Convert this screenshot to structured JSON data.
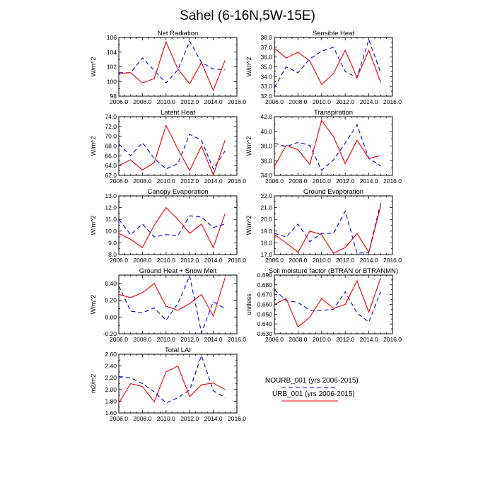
{
  "title": "Sahel (6-16N,5W-15E)",
  "legend": [
    {
      "name": "NOURB_001 (yrs 2006-2015)",
      "color": "#0000ee",
      "dash": true
    },
    {
      "name": "URB_001 (yrs 2006-2015)",
      "color": "#ee0000",
      "dash": false
    }
  ],
  "chart_data": [
    {
      "type": "line",
      "title": "Net Radiation",
      "ylabel": "W/m^2",
      "xlim": [
        2006,
        2016
      ],
      "ylim": [
        98,
        106
      ],
      "xticks": [
        2006,
        2008,
        2010,
        2012,
        2014,
        2016
      ],
      "xtick_labels": [
        "2006.0",
        "2008.0",
        "2010.0",
        "2012.0",
        "2014.0",
        "2016.0"
      ],
      "yticks": [
        98,
        100,
        102,
        104,
        106
      ],
      "ytick_labels": [
        "98",
        "100",
        "102",
        "104",
        "106"
      ],
      "x": [
        2006,
        2007,
        2008,
        2009,
        2010,
        2011,
        2012,
        2013,
        2014,
        2015
      ],
      "series": [
        {
          "name": "NOURB_001 (yrs 2006-2015)",
          "values": [
            101.2,
            101.2,
            103.2,
            101.5,
            99.8,
            101.6,
            105.5,
            102.6,
            101.7,
            101.6
          ]
        },
        {
          "name": "URB_001 (yrs 2006-2015)",
          "values": [
            101.1,
            101.2,
            99.8,
            100.4,
            105.4,
            101.7,
            99.7,
            102.6,
            98.8,
            102.9
          ]
        }
      ]
    },
    {
      "type": "line",
      "title": "Sensible Heat",
      "ylabel": "W/m^2",
      "xlim": [
        2006,
        2016
      ],
      "ylim": [
        32,
        38
      ],
      "xticks": [
        2006,
        2008,
        2010,
        2012,
        2014,
        2016
      ],
      "xtick_labels": [
        "2006.0",
        "2008.0",
        "2010.0",
        "2012.0",
        "2014.0",
        "2016.0"
      ],
      "yticks": [
        32,
        33,
        34,
        35,
        36,
        37,
        38
      ],
      "ytick_labels": [
        "32.0",
        "33.0",
        "34.0",
        "35.0",
        "36.0",
        "37.0",
        "38.0"
      ],
      "x": [
        2006,
        2007,
        2008,
        2009,
        2010,
        2011,
        2012,
        2013,
        2014,
        2015
      ],
      "series": [
        {
          "name": "NOURB_001 (yrs 2006-2015)",
          "values": [
            32.9,
            35.0,
            34.4,
            35.8,
            36.6,
            37.0,
            34.5,
            33.9,
            37.8,
            34.4
          ]
        },
        {
          "name": "URB_001 (yrs 2006-2015)",
          "values": [
            36.9,
            35.9,
            36.5,
            35.6,
            33.2,
            34.3,
            36.7,
            33.9,
            36.7,
            33.4
          ]
        }
      ]
    },
    {
      "type": "line",
      "title": "Latent Heat",
      "ylabel": "W/m^2",
      "xlim": [
        2006,
        2016
      ],
      "ylim": [
        62,
        74
      ],
      "xticks": [
        2006,
        2008,
        2010,
        2012,
        2014,
        2016
      ],
      "xtick_labels": [
        "2006.0",
        "2008.0",
        "2010.0",
        "2012.0",
        "2014.0",
        "2016.0"
      ],
      "yticks": [
        62,
        64,
        66,
        68,
        70,
        72,
        74
      ],
      "ytick_labels": [
        "62.0",
        "64.0",
        "66.0",
        "68.0",
        "70.0",
        "72.0",
        "74.0"
      ],
      "x": [
        2006,
        2007,
        2008,
        2009,
        2010,
        2011,
        2012,
        2013,
        2014,
        2015
      ],
      "series": [
        {
          "name": "NOURB_001 (yrs 2006-2015)",
          "values": [
            68.4,
            66.0,
            68.7,
            65.5,
            63.3,
            64.4,
            70.4,
            69.2,
            63.3,
            67.0
          ]
        },
        {
          "name": "URB_001 (yrs 2006-2015)",
          "values": [
            64.0,
            65.2,
            63.1,
            64.6,
            72.2,
            67.4,
            63.0,
            68.0,
            62.1,
            69.2
          ]
        }
      ]
    },
    {
      "type": "line",
      "title": "Transpiration",
      "ylabel": "W/m^2",
      "xlim": [
        2006,
        2016
      ],
      "ylim": [
        34,
        42
      ],
      "xticks": [
        2006,
        2008,
        2010,
        2012,
        2014,
        2016
      ],
      "xtick_labels": [
        "2006.0",
        "2008.0",
        "2010.0",
        "2012.0",
        "2014.0",
        "2016.0"
      ],
      "yticks": [
        34,
        36,
        38,
        40,
        42
      ],
      "ytick_labels": [
        "34.0",
        "36.0",
        "38.0",
        "40.0",
        "42.0"
      ],
      "x": [
        2006,
        2007,
        2008,
        2009,
        2010,
        2011,
        2012,
        2013,
        2014,
        2015
      ],
      "series": [
        {
          "name": "NOURB_001 (yrs 2006-2015)",
          "values": [
            38.4,
            37.9,
            38.5,
            38.1,
            34.7,
            36.1,
            38.4,
            40.9,
            36.3,
            35.3
          ]
        },
        {
          "name": "URB_001 (yrs 2006-2015)",
          "values": [
            35.2,
            38.1,
            37.5,
            35.5,
            41.5,
            39.3,
            35.6,
            38.8,
            36.3,
            36.7
          ]
        }
      ]
    },
    {
      "type": "line",
      "title": "Canopy Evaporation",
      "ylabel": "W/m^2",
      "xlim": [
        2006,
        2016
      ],
      "ylim": [
        8,
        13
      ],
      "xticks": [
        2006,
        2008,
        2010,
        2012,
        2014,
        2016
      ],
      "xtick_labels": [
        "2006.0",
        "2008.0",
        "2010.0",
        "2012.0",
        "2014.0",
        "2016.0"
      ],
      "yticks": [
        8,
        9,
        10,
        11,
        12,
        13
      ],
      "ytick_labels": [
        "8.0",
        "9.0",
        "10.0",
        "11.0",
        "12.0",
        "13.0"
      ],
      "x": [
        2006,
        2007,
        2008,
        2009,
        2010,
        2011,
        2012,
        2013,
        2014,
        2015
      ],
      "series": [
        {
          "name": "NOURB_001 (yrs 2006-2015)",
          "values": [
            11.0,
            9.7,
            10.6,
            9.5,
            9.7,
            9.6,
            11.3,
            11.2,
            10.3,
            10.6
          ]
        },
        {
          "name": "URB_001 (yrs 2006-2015)",
          "values": [
            9.8,
            9.3,
            8.6,
            10.5,
            12.0,
            11.0,
            9.8,
            10.6,
            8.6,
            11.5
          ]
        }
      ]
    },
    {
      "type": "line",
      "title": "Ground Evaporation",
      "ylabel": "W/m^2",
      "xlim": [
        2006,
        2016
      ],
      "ylim": [
        17,
        22
      ],
      "xticks": [
        2006,
        2008,
        2010,
        2012,
        2014,
        2016
      ],
      "xtick_labels": [
        "2006.0",
        "2008.0",
        "2010.0",
        "2012.0",
        "2014.0",
        "2016.0"
      ],
      "yticks": [
        17,
        18,
        19,
        20,
        21,
        22
      ],
      "ytick_labels": [
        "17.0",
        "18.0",
        "19.0",
        "20.0",
        "21.0",
        "22.0"
      ],
      "x": [
        2006,
        2007,
        2008,
        2009,
        2010,
        2011,
        2012,
        2013,
        2014,
        2015
      ],
      "series": [
        {
          "name": "NOURB_001 (yrs 2006-2015)",
          "values": [
            18.8,
            18.5,
            19.6,
            18.1,
            18.8,
            18.8,
            20.7,
            17.1,
            17.2,
            21.4
          ]
        },
        {
          "name": "URB_001 (yrs 2006-2015)",
          "values": [
            18.7,
            18.0,
            17.2,
            19.0,
            18.7,
            17.1,
            17.6,
            18.8,
            17.2,
            21.1
          ]
        }
      ]
    },
    {
      "type": "line",
      "title": "Ground Heat + Snow Melt",
      "ylabel": "W/m^2",
      "xlim": [
        2006,
        2016
      ],
      "ylim": [
        -0.2,
        0.5
      ],
      "xticks": [
        2006,
        2008,
        2010,
        2012,
        2014,
        2016
      ],
      "xtick_labels": [
        "2006.0",
        "2008.0",
        "2010.0",
        "2012.0",
        "2014.0",
        "2016.0"
      ],
      "yticks": [
        -0.2,
        0.0,
        0.2,
        0.4
      ],
      "ytick_labels": [
        "-0.20",
        "0.00",
        "0.20",
        "0.40"
      ],
      "x": [
        2006,
        2007,
        2008,
        2009,
        2010,
        2011,
        2012,
        2013,
        2014,
        2015
      ],
      "series": [
        {
          "name": "NOURB_001 (yrs 2006-2015)",
          "values": [
            0.37,
            0.07,
            0.05,
            0.11,
            -0.04,
            0.16,
            0.49,
            -0.19,
            0.18,
            0.1
          ]
        },
        {
          "name": "URB_001 (yrs 2006-2015)",
          "values": [
            0.27,
            0.23,
            0.29,
            0.4,
            0.13,
            0.08,
            0.16,
            0.27,
            0.01,
            0.47
          ]
        }
      ]
    },
    {
      "type": "line",
      "title": "Soil moisture factor (BTRAN or BTRANMN)",
      "ylabel": "unitless",
      "xlim": [
        2006,
        2016
      ],
      "ylim": [
        0.63,
        0.69
      ],
      "xticks": [
        2006,
        2008,
        2010,
        2012,
        2014,
        2016
      ],
      "xtick_labels": [
        "2006.0",
        "2008.0",
        "2010.0",
        "2012.0",
        "2014.0",
        "2016.0"
      ],
      "yticks": [
        0.63,
        0.64,
        0.65,
        0.66,
        0.67,
        0.68,
        0.69
      ],
      "ytick_labels": [
        "0.630",
        "0.640",
        "0.650",
        "0.660",
        "0.670",
        "0.680",
        "0.690"
      ],
      "x": [
        2006,
        2007,
        2008,
        2009,
        2010,
        2011,
        2012,
        2013,
        2014,
        2015
      ],
      "series": [
        {
          "name": "NOURB_001 (yrs 2006-2015)",
          "values": [
            0.675,
            0.664,
            0.662,
            0.654,
            0.654,
            0.655,
            0.673,
            0.651,
            0.642,
            0.673
          ]
        },
        {
          "name": "URB_001 (yrs 2006-2015)",
          "values": [
            0.66,
            0.666,
            0.637,
            0.647,
            0.666,
            0.656,
            0.66,
            0.684,
            0.652,
            0.687
          ]
        }
      ]
    },
    {
      "type": "line",
      "title": "Total LAI",
      "ylabel": "m2/m2",
      "xlim": [
        2006,
        2016
      ],
      "ylim": [
        1.6,
        2.6
      ],
      "xticks": [
        2006,
        2008,
        2010,
        2012,
        2014,
        2016
      ],
      "xtick_labels": [
        "2006.0",
        "2008.0",
        "2010.0",
        "2012.0",
        "2014.0",
        "2016.0"
      ],
      "yticks": [
        1.6,
        1.8,
        2.0,
        2.2,
        2.4,
        2.6
      ],
      "ytick_labels": [
        "1.60",
        "1.80",
        "2.00",
        "2.20",
        "2.40",
        "2.60"
      ],
      "x": [
        2006,
        2007,
        2008,
        2009,
        2010,
        2011,
        2012,
        2013,
        2014,
        2015
      ],
      "series": [
        {
          "name": "NOURB_001 (yrs 2006-2015)",
          "values": [
            2.22,
            2.2,
            2.1,
            1.96,
            1.77,
            1.86,
            1.99,
            2.58,
            1.98,
            1.86
          ]
        },
        {
          "name": "URB_001 (yrs 2006-2015)",
          "values": [
            1.77,
            2.1,
            2.05,
            1.79,
            2.3,
            2.4,
            1.88,
            2.08,
            2.11,
            2.0
          ]
        }
      ]
    }
  ]
}
